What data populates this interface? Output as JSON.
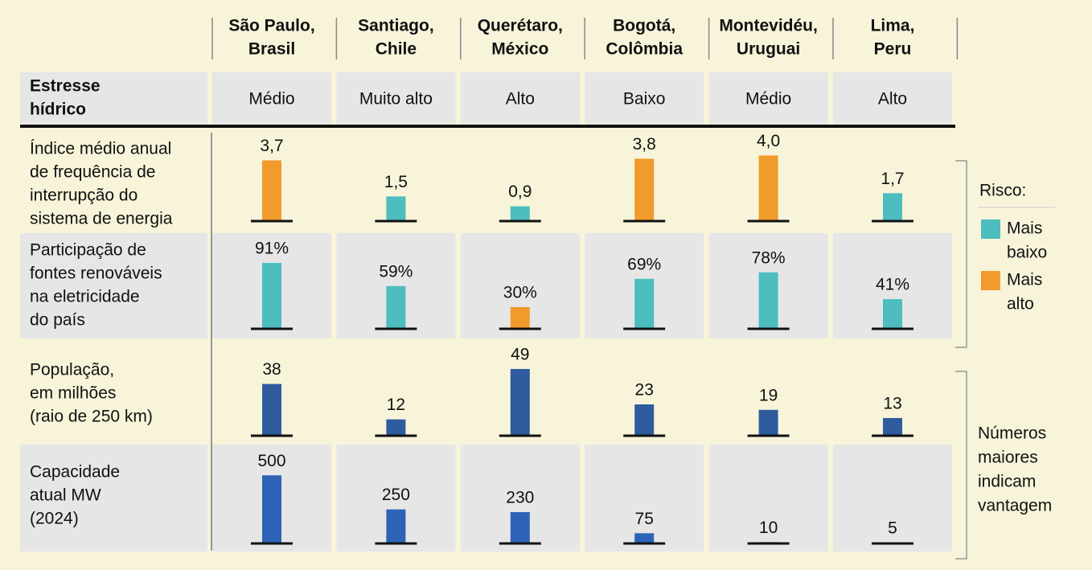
{
  "columns": [
    [
      "São Paulo,",
      "Brasil"
    ],
    [
      "Santiago,",
      "Chile"
    ],
    [
      "Querétaro,",
      "México"
    ],
    [
      "Bogotá,",
      "Colômbia"
    ],
    [
      "Montevidéu,",
      "Uruguai"
    ],
    [
      "Lima,",
      "Peru"
    ]
  ],
  "stress": {
    "label": [
      "Estresse",
      "hídrico"
    ],
    "values": [
      "Médio",
      "Muito alto",
      "Alto",
      "Baixo",
      "Médio",
      "Alto"
    ]
  },
  "metrics": [
    {
      "label": [
        "Índice médio anual",
        "de frequência de",
        "interrupção do",
        "sistema de energia"
      ],
      "values": [
        3.7,
        1.5,
        0.9,
        3.8,
        4.0,
        1.7
      ],
      "value_labels": [
        "3,7",
        "1,5",
        "0,9",
        "3,8",
        "4,0",
        "1,7"
      ],
      "colors": [
        "#f19b2c",
        "#4dbdbf",
        "#4dbdbf",
        "#f19b2c",
        "#f19b2c",
        "#4dbdbf"
      ],
      "ylim": [
        0,
        4.9
      ],
      "shaded": false
    },
    {
      "label": [
        "Participação de",
        "fontes renováveis",
        "na eletricidade",
        "do país"
      ],
      "values": [
        91,
        59,
        30,
        69,
        78,
        41
      ],
      "value_labels": [
        "91%",
        "59%",
        "30%",
        "69%",
        "78%",
        "41%"
      ],
      "colors": [
        "#4dbdbf",
        "#4dbdbf",
        "#f19b2c",
        "#4dbdbf",
        "#4dbdbf",
        "#4dbdbf"
      ],
      "ylim": [
        0,
        111
      ],
      "shaded": true
    },
    {
      "label": [
        "População,",
        "em milhões",
        "(raio de 250 km)"
      ],
      "values": [
        38,
        12,
        49,
        23,
        19,
        13
      ],
      "colors": [
        "#2f5b9f",
        "#2f5b9f",
        "#2f5b9f",
        "#2f5b9f",
        "#2f5b9f",
        "#2f5b9f"
      ],
      "ylim": [
        0,
        59
      ],
      "shaded": false
    },
    {
      "label": [
        "Capacidade",
        "atual MW",
        "(2024)"
      ],
      "values": [
        500,
        250,
        230,
        75,
        10,
        5
      ],
      "colors": [
        "#2d63b7",
        "#2d63b7",
        "#2d63b7",
        "#2d63b7",
        "#2d63b7",
        "#2d63b7"
      ],
      "ylim": [
        0,
        590
      ],
      "shaded": true
    }
  ],
  "legend": {
    "title": "Risco:",
    "items": [
      {
        "label": [
          "Mais",
          "baixo"
        ],
        "color": "#4dbdbf"
      },
      {
        "label": [
          "Mais",
          "alto"
        ],
        "color": "#f19b2c"
      }
    ]
  },
  "note": [
    "Números",
    "maiores",
    "indicam",
    "vantagem"
  ]
}
